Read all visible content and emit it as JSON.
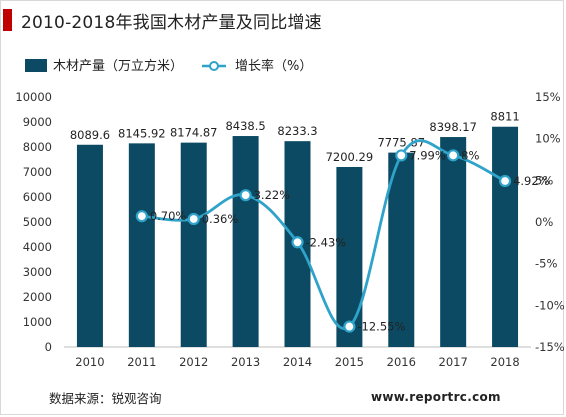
{
  "title": "2010-2018年我国木材产量及同比增速",
  "source": "数据来源：锐观咨询",
  "website": "www.reportrc.com",
  "colors": {
    "bar": "#0b4a62",
    "line": "#2fa3c9",
    "text": "#333333",
    "axis": "#999999",
    "accent": "#c00000"
  },
  "legend": {
    "bar_label": "木材产量（万立方米）",
    "line_label": "增长率（%）"
  },
  "chart_data": {
    "type": "bar",
    "categories": [
      "2010",
      "2011",
      "2012",
      "2013",
      "2014",
      "2015",
      "2016",
      "2017",
      "2018"
    ],
    "series": [
      {
        "name": "木材产量（万立方米）",
        "type": "bar",
        "axis": "left",
        "values": [
          8089.6,
          8145.92,
          8174.87,
          8438.5,
          8233.3,
          7200.29,
          7775.87,
          8398.17,
          8811
        ],
        "labels": [
          "8089.6",
          "8145.92",
          "8174.87",
          "8438.5",
          "8233.3",
          "7200.29",
          "7775.87",
          "8398.17",
          "8811"
        ]
      },
      {
        "name": "增长率（%）",
        "type": "line",
        "axis": "right",
        "x": [
          "2011",
          "2012",
          "2013",
          "2014",
          "2015",
          "2016",
          "2017",
          "2018"
        ],
        "values": [
          0.7,
          0.36,
          3.22,
          -2.43,
          -12.55,
          7.99,
          8.0,
          4.92
        ],
        "labels": [
          "0.70%",
          "0.36%",
          "3.22%",
          "-2.43%",
          "-12.55%",
          "7.99%",
          "8%",
          "4.92%"
        ]
      }
    ],
    "y_left": {
      "min": 0,
      "max": 10000,
      "step": 1000,
      "ticks": [
        "0",
        "1000",
        "2000",
        "3000",
        "4000",
        "5000",
        "6000",
        "7000",
        "8000",
        "9000",
        "10000"
      ]
    },
    "y_right": {
      "min": -15,
      "max": 15,
      "step": 5,
      "ticks": [
        "-15%",
        "-10%",
        "-5%",
        "0%",
        "5%",
        "10%",
        "15%"
      ]
    },
    "grid": false,
    "legend_position": "top-left"
  }
}
